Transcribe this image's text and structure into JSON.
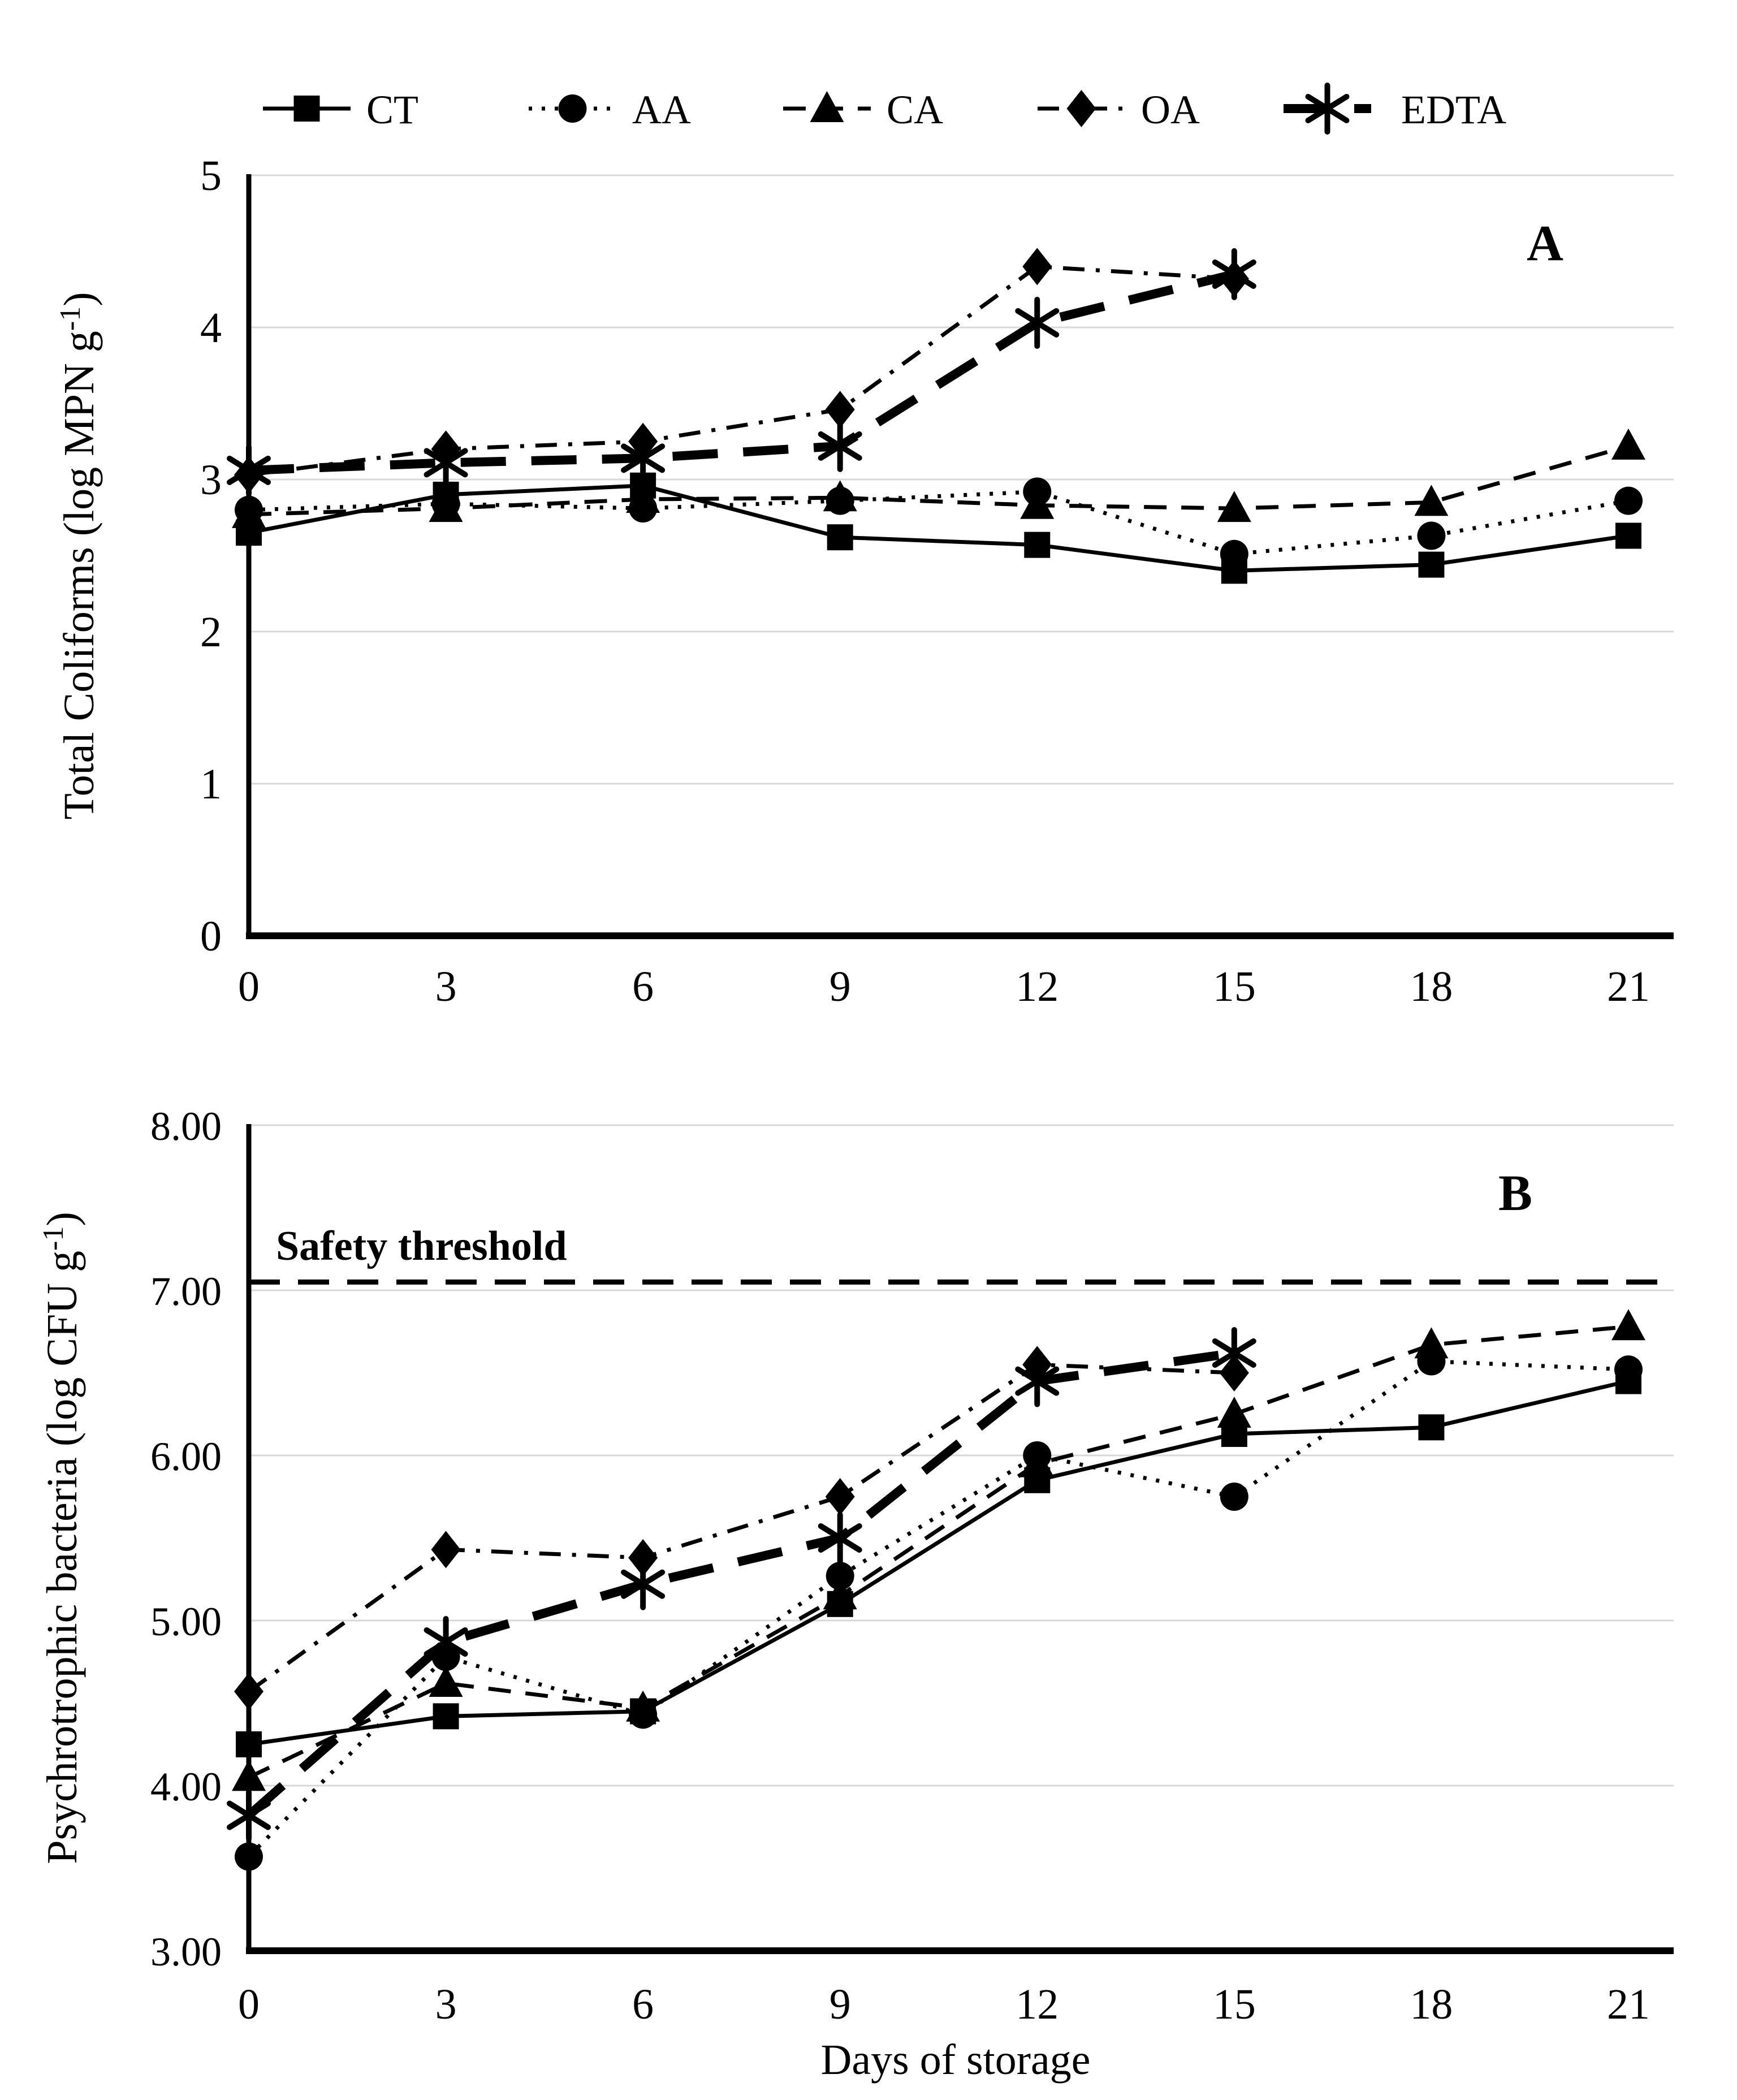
{
  "legend": {
    "items": [
      {
        "label": "CT",
        "series": "CT"
      },
      {
        "label": "AA",
        "series": "AA"
      },
      {
        "label": "CA",
        "series": "CA"
      },
      {
        "label": "OA",
        "series": "OA"
      },
      {
        "label": "EDTA",
        "series": "EDTA"
      }
    ]
  },
  "chart_data": [
    {
      "type": "line",
      "panel_label": "A",
      "ylabel_pre": "Total Coliforms (log MPN g",
      "ylabel_sup": "-1",
      "ylabel_post": ")",
      "xlabel": "",
      "x": [
        0,
        3,
        6,
        9,
        12,
        15,
        18,
        21
      ],
      "xtick_labels": [
        "0",
        "3",
        "6",
        "9",
        "12",
        "15",
        "18",
        "21"
      ],
      "ytick_labels": [
        "0",
        "1",
        "2",
        "3",
        "4",
        "5"
      ],
      "ytick_values": [
        0,
        1,
        2,
        3,
        4,
        5
      ],
      "ylim": [
        0,
        5
      ],
      "grid": true,
      "series": [
        {
          "name": "CT",
          "marker": "square",
          "line": "solid",
          "values": [
            2.65,
            2.9,
            2.96,
            2.62,
            2.57,
            2.4,
            2.44,
            2.63
          ]
        },
        {
          "name": "AA",
          "marker": "circle",
          "line": "dotted",
          "values": [
            2.8,
            2.84,
            2.81,
            2.86,
            2.92,
            2.51,
            2.63,
            2.86
          ]
        },
        {
          "name": "CA",
          "marker": "triangle",
          "line": "dashed",
          "values": [
            2.77,
            2.81,
            2.87,
            2.88,
            2.83,
            2.81,
            2.85,
            3.22
          ]
        },
        {
          "name": "OA",
          "marker": "diamond",
          "line": "dashdot",
          "values": [
            3.03,
            3.2,
            3.25,
            3.46,
            4.4,
            4.32,
            null,
            null
          ]
        },
        {
          "name": "EDTA",
          "marker": "asterisk",
          "line": "longdash",
          "values": [
            3.06,
            3.11,
            3.14,
            3.22,
            4.03,
            4.35,
            null,
            null
          ]
        }
      ]
    },
    {
      "type": "line",
      "panel_label": "B",
      "ylabel_pre": "Psychrotrophic bacteria (log CFU g",
      "ylabel_sup": "-1",
      "ylabel_post": ")",
      "xlabel": "Days of storage",
      "x": [
        0,
        3,
        6,
        9,
        12,
        15,
        18,
        21
      ],
      "xtick_labels": [
        "0",
        "3",
        "6",
        "9",
        "12",
        "15",
        "18",
        "21"
      ],
      "ytick_labels": [
        "3.00",
        "4.00",
        "5.00",
        "6.00",
        "7.00",
        "8.00"
      ],
      "ytick_values": [
        3,
        4,
        5,
        6,
        7,
        8
      ],
      "ylim": [
        3,
        8
      ],
      "grid": true,
      "threshold": {
        "label": "Safety threshold",
        "value": 7.05
      },
      "series": [
        {
          "name": "CT",
          "marker": "square",
          "line": "solid",
          "values": [
            4.25,
            4.42,
            4.45,
            5.1,
            5.85,
            6.13,
            6.17,
            6.45
          ]
        },
        {
          "name": "AA",
          "marker": "circle",
          "line": "dotted",
          "values": [
            3.57,
            4.78,
            4.43,
            5.27,
            6.0,
            5.75,
            6.57,
            6.52
          ]
        },
        {
          "name": "CA",
          "marker": "triangle",
          "line": "dashed",
          "values": [
            4.05,
            4.62,
            4.47,
            5.15,
            5.95,
            6.25,
            6.67,
            6.78
          ]
        },
        {
          "name": "OA",
          "marker": "diamond",
          "line": "dashdot",
          "values": [
            4.57,
            5.43,
            5.38,
            5.75,
            6.55,
            6.5,
            null,
            null
          ]
        },
        {
          "name": "EDTA",
          "marker": "asterisk",
          "line": "longdash",
          "values": [
            3.82,
            4.87,
            5.22,
            5.5,
            6.45,
            6.62,
            null,
            null
          ]
        }
      ]
    }
  ],
  "colors": {
    "series": "#000000",
    "gridline": "#d9d9d9",
    "background": "#ffffff"
  }
}
